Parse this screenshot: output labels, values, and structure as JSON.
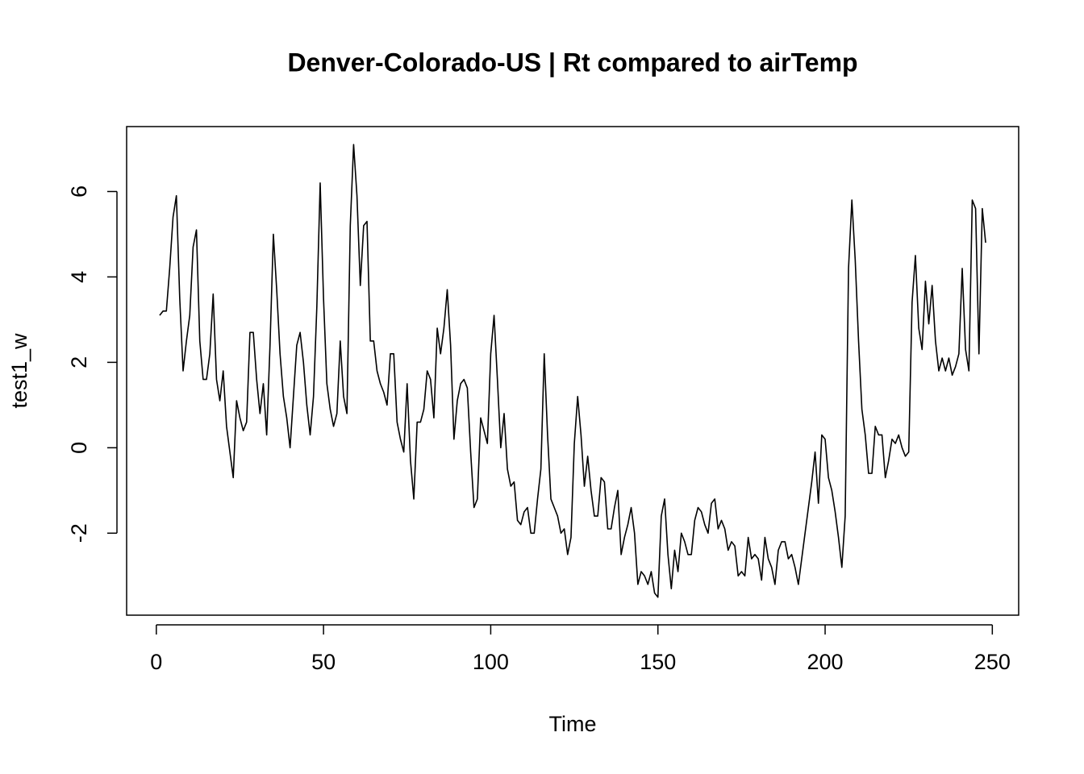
{
  "chart_data": {
    "type": "line",
    "title": "Denver-Colorado-US | Rt compared to airTemp",
    "x_label": "Time",
    "y_label": "test1_w",
    "color": "#000000",
    "xlim": [
      -8.88,
      257.88
    ],
    "ylim": [
      -3.92,
      7.52
    ],
    "xticks": [
      0,
      50,
      100,
      150,
      200,
      250
    ],
    "yticks": [
      -2,
      0,
      2,
      4,
      6
    ],
    "x": [
      1,
      2,
      3,
      4,
      5,
      6,
      7,
      8,
      9,
      10,
      11,
      12,
      13,
      14,
      15,
      16,
      17,
      18,
      19,
      20,
      21,
      22,
      23,
      24,
      25,
      26,
      27,
      28,
      29,
      30,
      31,
      32,
      33,
      34,
      35,
      36,
      37,
      38,
      39,
      40,
      41,
      42,
      43,
      44,
      45,
      46,
      47,
      48,
      49,
      50,
      51,
      52,
      53,
      54,
      55,
      56,
      57,
      58,
      59,
      60,
      61,
      62,
      63,
      64,
      65,
      66,
      67,
      68,
      69,
      70,
      71,
      72,
      73,
      74,
      75,
      76,
      77,
      78,
      79,
      80,
      81,
      82,
      83,
      84,
      85,
      86,
      87,
      88,
      89,
      90,
      91,
      92,
      93,
      94,
      95,
      96,
      97,
      98,
      99,
      100,
      101,
      102,
      103,
      104,
      105,
      106,
      107,
      108,
      109,
      110,
      111,
      112,
      113,
      114,
      115,
      116,
      117,
      118,
      119,
      120,
      121,
      122,
      123,
      124,
      125,
      126,
      127,
      128,
      129,
      130,
      131,
      132,
      133,
      134,
      135,
      136,
      137,
      138,
      139,
      140,
      141,
      142,
      143,
      144,
      145,
      146,
      147,
      148,
      149,
      150,
      151,
      152,
      153,
      154,
      155,
      156,
      157,
      158,
      159,
      160,
      161,
      162,
      163,
      164,
      165,
      166,
      167,
      168,
      169,
      170,
      171,
      172,
      173,
      174,
      175,
      176,
      177,
      178,
      179,
      180,
      181,
      182,
      183,
      184,
      185,
      186,
      187,
      188,
      189,
      190,
      191,
      192,
      193,
      194,
      195,
      196,
      197,
      198,
      199,
      200,
      201,
      202,
      203,
      204,
      205,
      206,
      207,
      208,
      209,
      210,
      211,
      212,
      213,
      214,
      215,
      216,
      217,
      218,
      219,
      220,
      221,
      222,
      223,
      224,
      225,
      226,
      227,
      228,
      229,
      230,
      231,
      232,
      233,
      234,
      235,
      236,
      237,
      238,
      239,
      240,
      241,
      242,
      243,
      244,
      245,
      246,
      247,
      248
    ],
    "values": [
      3.1,
      3.2,
      3.2,
      4.2,
      5.4,
      5.9,
      3.5,
      1.8,
      2.5,
      3.1,
      4.7,
      5.1,
      2.5,
      1.6,
      1.6,
      2.2,
      3.6,
      1.6,
      1.1,
      1.8,
      0.5,
      -0.1,
      -0.7,
      1.1,
      0.7,
      0.4,
      0.6,
      2.7,
      2.7,
      1.6,
      0.8,
      1.5,
      0.3,
      2.4,
      5.0,
      3.7,
      2.2,
      1.2,
      0.7,
      0.0,
      1.2,
      2.4,
      2.7,
      2.0,
      1.0,
      0.3,
      1.2,
      3.3,
      6.2,
      3.5,
      1.5,
      0.9,
      0.5,
      0.8,
      2.5,
      1.2,
      0.8,
      5.2,
      7.1,
      5.9,
      3.8,
      5.2,
      5.3,
      2.5,
      2.5,
      1.8,
      1.5,
      1.3,
      1.0,
      2.2,
      2.2,
      0.6,
      0.2,
      -0.1,
      1.5,
      -0.3,
      -1.2,
      0.6,
      0.6,
      0.9,
      1.8,
      1.6,
      0.7,
      2.8,
      2.2,
      2.8,
      3.7,
      2.4,
      0.2,
      1.1,
      1.5,
      1.6,
      1.4,
      -0.1,
      -1.4,
      -1.2,
      0.7,
      0.4,
      0.1,
      2.2,
      3.1,
      1.6,
      0.0,
      0.8,
      -0.5,
      -0.9,
      -0.8,
      -1.7,
      -1.8,
      -1.5,
      -1.4,
      -2.0,
      -2.0,
      -1.2,
      -0.5,
      2.2,
      0.3,
      -1.2,
      -1.4,
      -1.6,
      -2.0,
      -1.9,
      -2.5,
      -2.1,
      0.1,
      1.2,
      0.3,
      -0.9,
      -0.2,
      -1.0,
      -1.6,
      -1.6,
      -0.7,
      -0.8,
      -1.9,
      -1.9,
      -1.4,
      -1.0,
      -2.5,
      -2.1,
      -1.8,
      -1.4,
      -2.0,
      -3.2,
      -2.9,
      -3.0,
      -3.2,
      -2.9,
      -3.4,
      -3.5,
      -1.6,
      -1.2,
      -2.5,
      -3.3,
      -2.4,
      -2.9,
      -2.0,
      -2.2,
      -2.5,
      -2.5,
      -1.7,
      -1.4,
      -1.5,
      -1.8,
      -2.0,
      -1.3,
      -1.2,
      -1.9,
      -1.7,
      -1.9,
      -2.4,
      -2.2,
      -2.3,
      -3.0,
      -2.9,
      -3.0,
      -2.1,
      -2.6,
      -2.5,
      -2.6,
      -3.1,
      -2.1,
      -2.6,
      -2.8,
      -3.2,
      -2.4,
      -2.2,
      -2.2,
      -2.6,
      -2.5,
      -2.8,
      -3.2,
      -2.6,
      -2.0,
      -1.4,
      -0.8,
      -0.1,
      -1.3,
      0.3,
      0.2,
      -0.7,
      -1.0,
      -1.5,
      -2.1,
      -2.8,
      -1.6,
      4.2,
      5.8,
      4.4,
      2.5,
      0.9,
      0.3,
      -0.6,
      -0.6,
      0.5,
      0.3,
      0.3,
      -0.7,
      -0.3,
      0.2,
      0.1,
      0.3,
      0.0,
      -0.2,
      -0.1,
      3.4,
      4.5,
      2.8,
      2.3,
      3.9,
      2.9,
      3.8,
      2.5,
      1.8,
      2.1,
      1.8,
      2.1,
      1.7,
      1.9,
      2.2,
      4.2,
      2.3,
      1.8,
      5.8,
      5.6,
      2.2,
      5.6,
      4.8
    ]
  }
}
